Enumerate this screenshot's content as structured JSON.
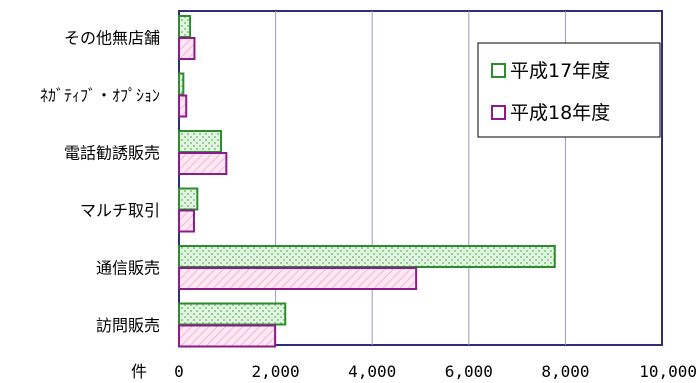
{
  "chart_data": {
    "type": "bar",
    "orientation": "horizontal",
    "categories": [
      "その他無店舗",
      "ﾈｶﾞﾃｨﾌﾞ・ｵﾌﾟｼｮﾝ",
      "電話勧誘販売",
      "マルチ取引",
      "通信販売",
      "訪問販売"
    ],
    "series": [
      {
        "name": "平成17年度",
        "values": [
          230,
          90,
          870,
          380,
          7780,
          2200
        ],
        "color": "#2e8b2e",
        "fill": "#c8ecc8"
      },
      {
        "name": "平成18年度",
        "values": [
          320,
          150,
          980,
          310,
          4910,
          1990
        ],
        "color": "#8b1a8b",
        "fill": "#fbd8ec"
      }
    ],
    "xlim": [
      0,
      10000
    ],
    "x_ticks": [
      "0",
      "2,000",
      "4,000",
      "6,000",
      "8,000",
      "10,000"
    ],
    "x_tick_values": [
      0,
      2000,
      4000,
      6000,
      8000,
      10000
    ],
    "x_unit_label": "件",
    "grid": true,
    "legend_position": "top-right"
  }
}
